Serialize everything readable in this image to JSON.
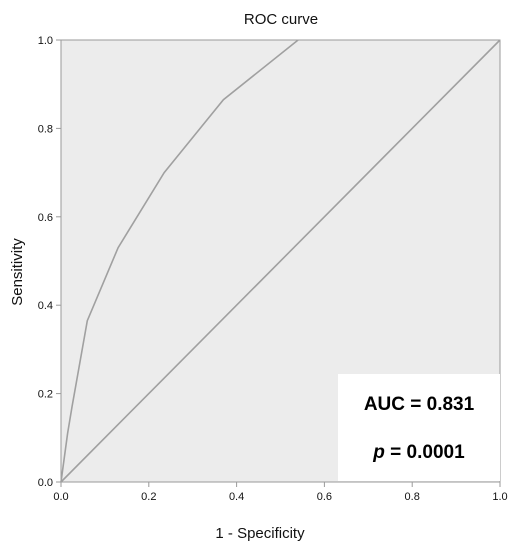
{
  "chart_data": {
    "type": "line",
    "title": "ROC curve",
    "xlabel": "1 - Specificity",
    "ylabel": "Sensitivity",
    "xlim": [
      0,
      1
    ],
    "ylim": [
      0,
      1
    ],
    "x_ticks": [
      "0.0",
      "0.2",
      "0.4",
      "0.6",
      "0.8",
      "1.0"
    ],
    "y_ticks": [
      "0.0",
      "0.2",
      "0.4",
      "0.6",
      "0.8",
      "1.0"
    ],
    "grid": false,
    "series": [
      {
        "x": [
          0,
          0.015,
          0.025,
          0.06,
          0.13,
          0.235,
          0.37,
          0.54
        ],
        "y": [
          0,
          0.11,
          0.17,
          0.365,
          0.53,
          0.7,
          0.865,
          1.0
        ],
        "color": "#a0a0a0"
      },
      {
        "x": [
          0,
          1
        ],
        "y": [
          0,
          1
        ],
        "color": "#a0a0a0"
      }
    ],
    "annotation": {
      "auc_text": "AUC = 0.831",
      "p_symbol": "p",
      "p_value_text": " = 0.0001"
    },
    "colors": {
      "plot_background": "#ececec",
      "frame": "#9a9a9a",
      "annotation_box": "#ffffff"
    }
  }
}
